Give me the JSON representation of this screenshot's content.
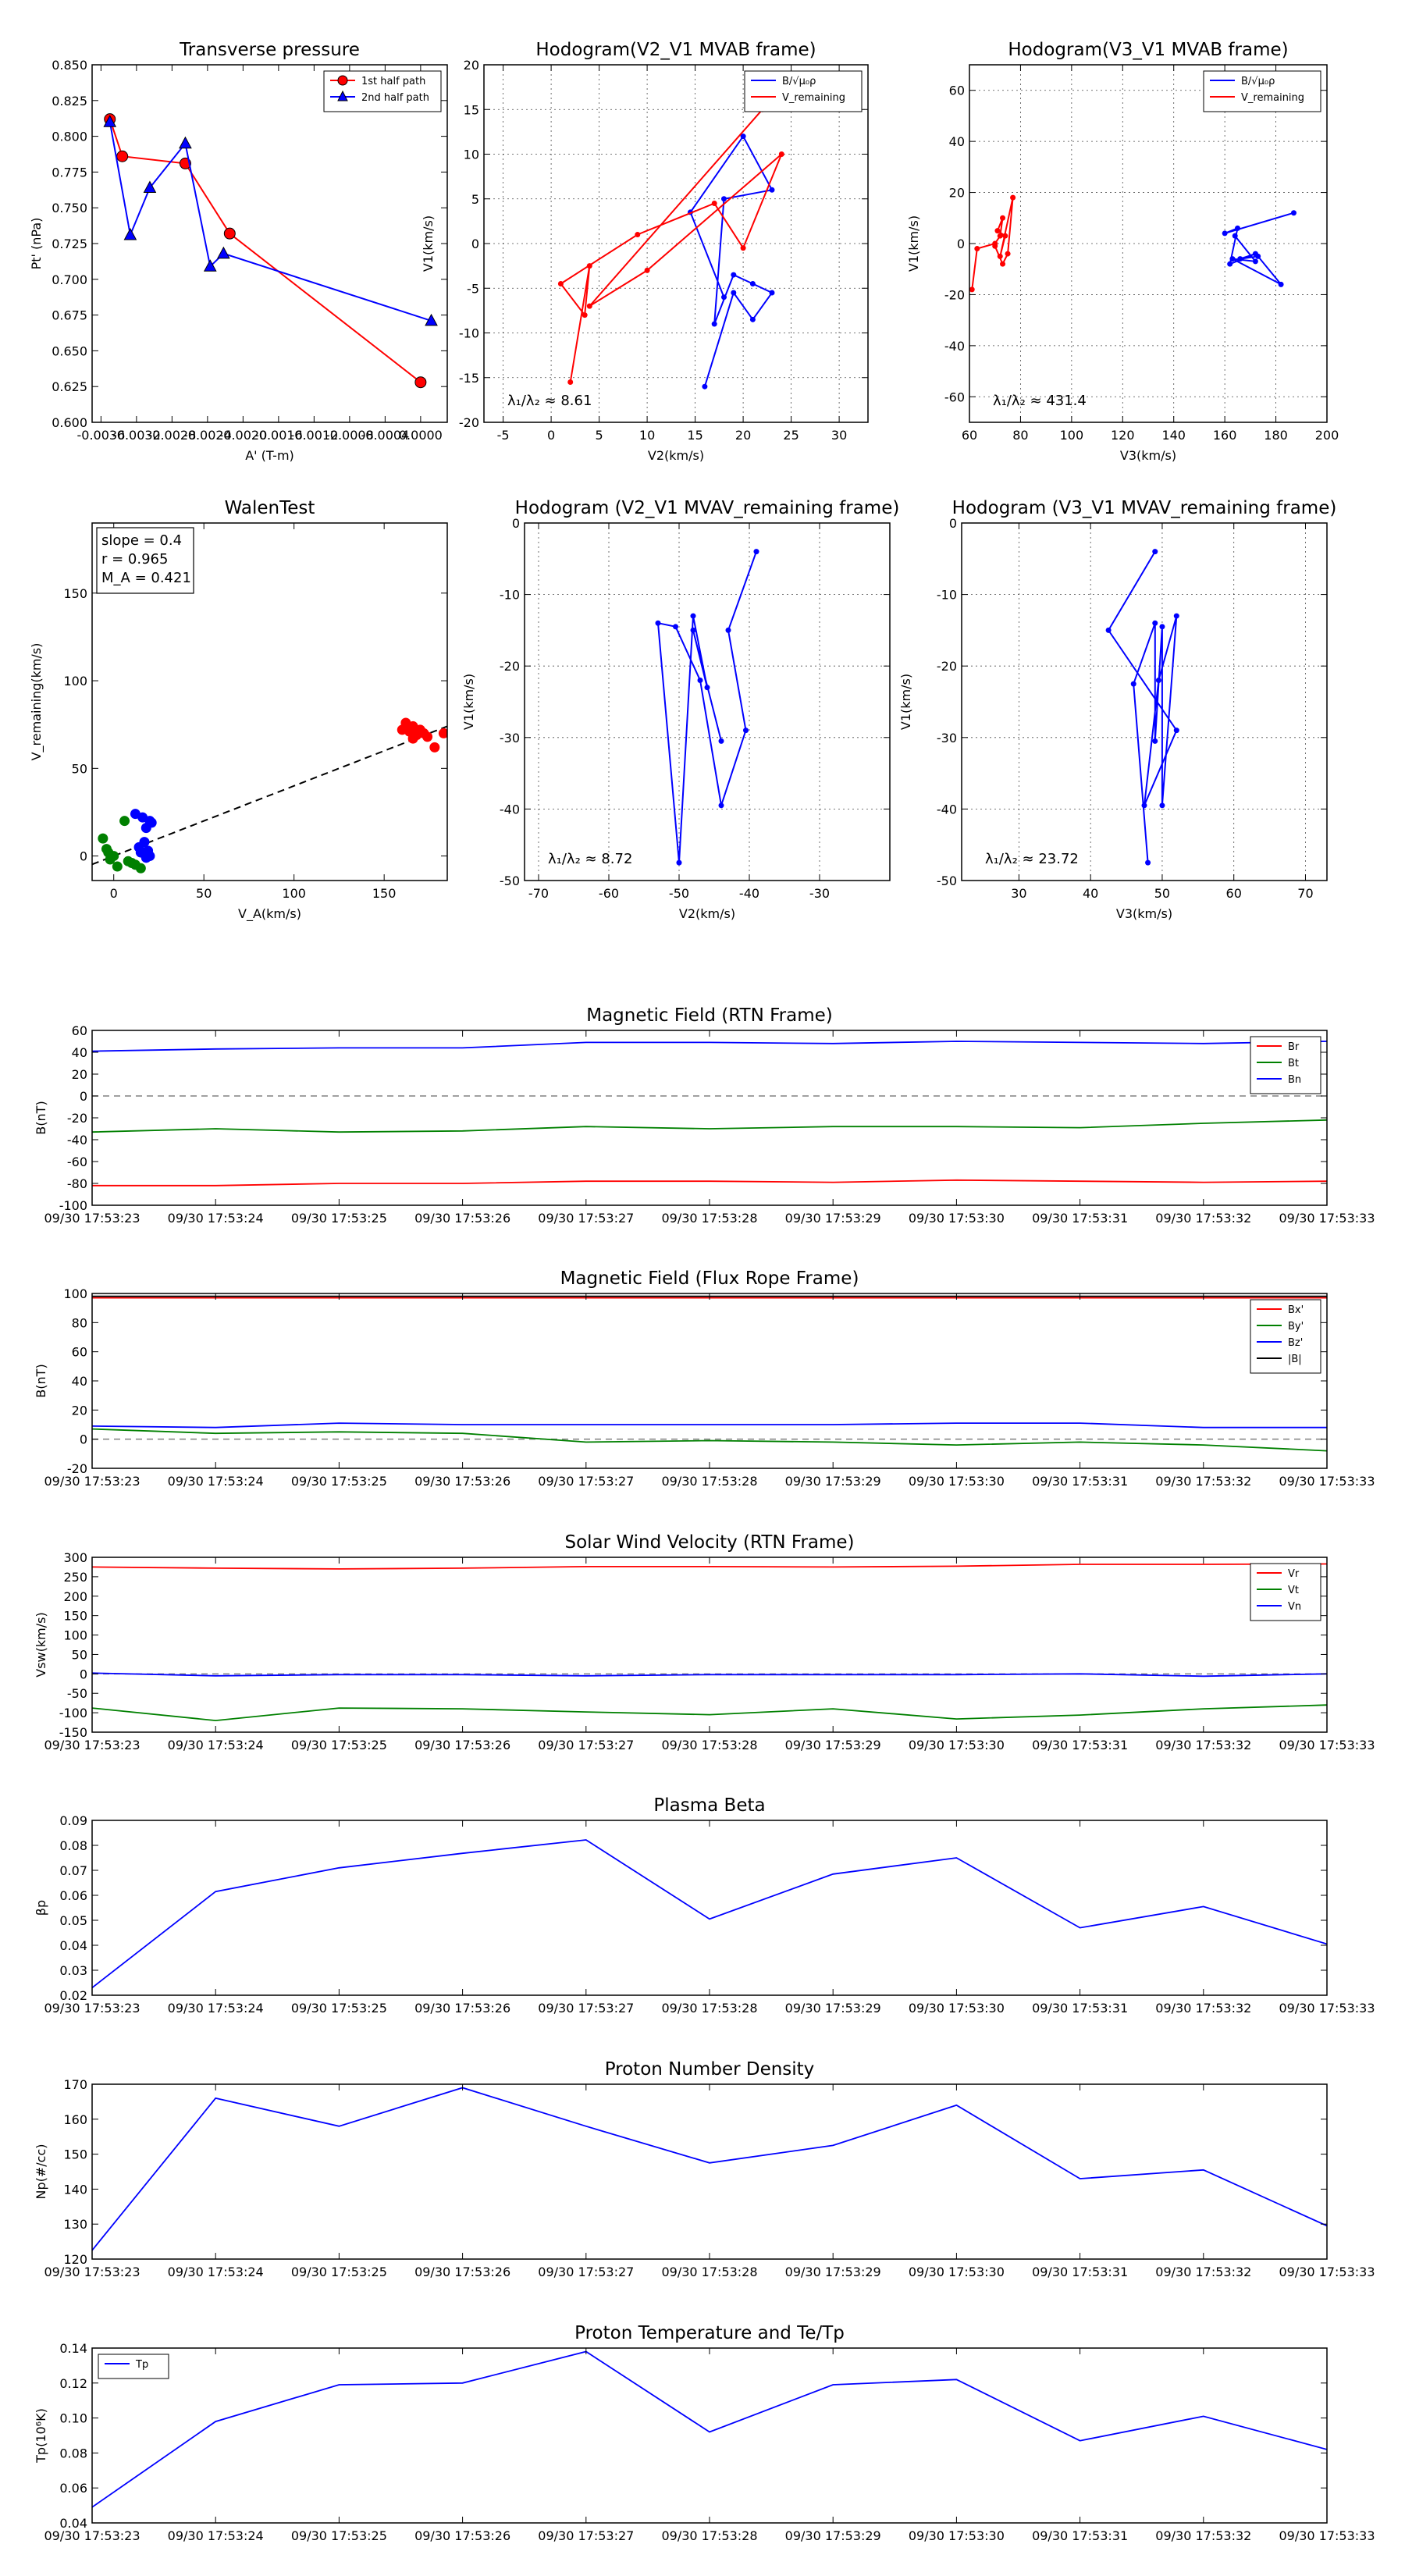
{
  "chart_data": [
    {
      "id": "tp",
      "type": "line",
      "title": "Transverse pressure",
      "xlabel": "A' (T-m)",
      "ylabel": "Pt' (nPa)",
      "xlim": [
        -0.0037,
        0.0003
      ],
      "ylim": [
        0.6,
        0.85
      ],
      "xticks": [
        -0.0036,
        -0.0032,
        -0.0028,
        -0.0024,
        -0.002,
        -0.0016,
        -0.0012,
        -0.0008,
        -0.0004,
        0.0
      ],
      "xticklabels": [
        "-0.0036",
        "-0.0032",
        "-0.0028",
        "-0.0024",
        "-0.0020",
        "-0.0016",
        "-0.0012",
        "-0.0008",
        "-0.0004",
        "0.0000"
      ],
      "yticks": [
        0.6,
        0.625,
        0.65,
        0.675,
        0.7,
        0.725,
        0.75,
        0.775,
        0.8,
        0.825,
        0.85
      ],
      "yticklabels": [
        "0.600",
        "0.625",
        "0.650",
        "0.675",
        "0.700",
        "0.725",
        "0.750",
        "0.775",
        "0.800",
        "0.825",
        "0.850"
      ],
      "grid": false,
      "legend": "top-right",
      "series": [
        {
          "name": "1st half path",
          "color": "#ff0000",
          "marker": "circle",
          "x": [
            -0.0035,
            -0.00336,
            -0.00265,
            -0.00215,
            0.0
          ],
          "y": [
            0.812,
            0.786,
            0.781,
            0.732,
            0.628
          ]
        },
        {
          "name": "2nd half path",
          "color": "#0000ff",
          "marker": "triangle",
          "x": [
            -0.0035,
            -0.00327,
            -0.00305,
            -0.00265,
            -0.00237,
            -0.00222,
            0.00012
          ],
          "y": [
            0.81,
            0.731,
            0.764,
            0.795,
            0.709,
            0.718,
            0.671
          ]
        }
      ]
    },
    {
      "id": "hodo1",
      "type": "line",
      "title": "Hodogram(V2_V1 MVAB frame)",
      "xlabel": "V2(km/s)",
      "ylabel": "V1(km/s)",
      "xlim": [
        -7,
        33
      ],
      "ylim": [
        -20,
        20
      ],
      "xticks": [
        -5,
        0,
        5,
        10,
        15,
        20,
        25,
        30
      ],
      "yticks": [
        -20,
        -15,
        -10,
        -5,
        0,
        5,
        10,
        15,
        20
      ],
      "grid": true,
      "legend": "top-right",
      "annotation": "λ₁/λ₂ ≈ 8.61",
      "series": [
        {
          "name": "B/√μ₀ρ",
          "color": "#0000ff",
          "x": [
            16,
            19,
            21,
            23,
            21,
            19,
            17,
            18,
            23,
            20,
            14.5,
            18
          ],
          "y": [
            -16,
            -5.5,
            -8.5,
            -5.5,
            -4.5,
            -3.5,
            -9,
            5,
            6,
            12,
            3.5,
            -6
          ]
        },
        {
          "name": "V_remaining",
          "color": "#ff0000",
          "x": [
            2,
            4,
            3.5,
            1,
            9,
            17,
            20,
            24,
            10,
            4,
            22
          ],
          "y": [
            -15.5,
            -2.5,
            -8,
            -4.5,
            1,
            4.5,
            -0.5,
            10,
            -3,
            -7,
            15
          ]
        }
      ]
    },
    {
      "id": "hodo2",
      "type": "line",
      "title": "Hodogram(V3_V1 MVAB frame)",
      "xlabel": "V3(km/s)",
      "ylabel": "V1(km/s)",
      "xlim": [
        60,
        200
      ],
      "ylim": [
        -70,
        70
      ],
      "xticks": [
        60,
        80,
        100,
        120,
        140,
        160,
        180,
        200
      ],
      "yticks": [
        -60,
        -40,
        -20,
        0,
        20,
        40,
        60
      ],
      "grid": true,
      "legend": "top-right",
      "annotation": "λ₁/λ₂ ≈ 431.4",
      "series": [
        {
          "name": "B/√μ₀ρ",
          "color": "#0000ff",
          "x": [
            187,
            160,
            165,
            162,
            172,
            166,
            173,
            182,
            163,
            172,
            164
          ],
          "y": [
            12,
            4,
            6,
            -8,
            -4,
            -6,
            -5,
            -16,
            -6,
            -7,
            3
          ]
        },
        {
          "name": "V_remaining",
          "color": "#ff0000",
          "x": [
            61,
            63,
            70,
            72,
            73,
            71,
            74,
            72,
            77,
            75,
            73,
            70
          ],
          "y": [
            -18,
            -2,
            0,
            3,
            10,
            5,
            3,
            -5,
            18,
            -4,
            -8,
            -1
          ]
        }
      ]
    },
    {
      "id": "walen",
      "type": "scatter",
      "title": "WalenTest",
      "xlabel": "V_A(km/s)",
      "ylabel": "V_remaining(km/s)",
      "xlim": [
        -12,
        185
      ],
      "ylim": [
        -14,
        190
      ],
      "xticks": [
        0,
        50,
        100,
        150
      ],
      "yticks": [
        0,
        50,
        100,
        150
      ],
      "grid": false,
      "legend": "top-left",
      "legend_lines": [
        "slope = 0.4",
        "r = 0.965",
        "M_A = 0.421"
      ],
      "fit_line": {
        "slope": 0.4,
        "intercept": 0
      },
      "series": [
        {
          "name": "red",
          "color": "#ff0000",
          "x": [
            160,
            162,
            164,
            166,
            168,
            170,
            172,
            174,
            162,
            166,
            178,
            183
          ],
          "y": [
            72,
            76,
            71,
            74,
            69,
            72,
            70,
            68,
            73,
            67,
            62,
            70
          ]
        },
        {
          "name": "green",
          "color": "#008000",
          "x": [
            -6,
            -4,
            -2,
            0,
            2,
            6,
            8,
            10,
            15,
            -3,
            12
          ],
          "y": [
            10,
            4,
            -2,
            0,
            -6,
            20,
            -3,
            -4,
            -7,
            2,
            -5
          ]
        },
        {
          "name": "blue",
          "color": "#0000ff",
          "x": [
            12,
            16,
            18,
            20,
            14,
            17,
            19,
            20,
            15,
            18,
            21
          ],
          "y": [
            24,
            22,
            16,
            20,
            5,
            8,
            3,
            0,
            2,
            -1,
            19
          ]
        }
      ]
    },
    {
      "id": "hodo3",
      "type": "line",
      "title": "Hodogram (V2_V1 MVAV_remaining frame)",
      "xlabel": "V2(km/s)",
      "ylabel": "V1(km/s)",
      "xlim": [
        -72,
        -20
      ],
      "ylim": [
        -50,
        0
      ],
      "xticks": [
        -70,
        -60,
        -50,
        -40,
        -30
      ],
      "yticks": [
        -50,
        -40,
        -30,
        -20,
        -10,
        0
      ],
      "grid": true,
      "legend": "none",
      "annotation": "λ₁/λ₂ ≈ 8.72",
      "series": [
        {
          "name": "B",
          "color": "#0000ff",
          "x": [
            -39,
            -43,
            -40.5,
            -44,
            -47,
            -50.5,
            -53,
            -50,
            -48,
            -46,
            -48,
            -44
          ],
          "y": [
            -4,
            -15,
            -29,
            -39.5,
            -22,
            -14.5,
            -14,
            -47.5,
            -13,
            -23,
            -15,
            -30.5
          ]
        }
      ]
    },
    {
      "id": "hodo4",
      "type": "line",
      "title": "Hodogram (V3_V1 MVAV_remaining frame)",
      "xlabel": "V3(km/s)",
      "ylabel": "V1(km/s)",
      "xlim": [
        22,
        73
      ],
      "ylim": [
        -50,
        0
      ],
      "xticks": [
        30,
        40,
        50,
        60,
        70
      ],
      "yticks": [
        -50,
        -40,
        -30,
        -20,
        -10,
        0
      ],
      "grid": true,
      "legend": "none",
      "annotation": "λ₁/λ₂ ≈ 23.72",
      "series": [
        {
          "name": "B",
          "color": "#0000ff",
          "x": [
            49,
            42.5,
            52,
            47.5,
            49.5,
            52,
            50,
            50,
            49,
            49,
            46,
            48
          ],
          "y": [
            -4,
            -15,
            -29,
            -39.5,
            -22,
            -13,
            -39.5,
            -14.5,
            -30.5,
            -14,
            -22.5,
            -47.5
          ]
        }
      ]
    },
    {
      "id": "bfield",
      "type": "line",
      "title": "Magnetic Field (RTN Frame)",
      "ylabel": "B(nT)",
      "ylim": [
        -100,
        60
      ],
      "yticks": [
        -100,
        -80,
        -60,
        -40,
        -20,
        0,
        20,
        40,
        60
      ],
      "xticklabels": [
        "09/30 17:53:23",
        "09/30 17:53:24",
        "09/30 17:53:25",
        "09/30 17:53:26",
        "09/30 17:53:27",
        "09/30 17:53:28",
        "09/30 17:53:29",
        "09/30 17:53:30",
        "09/30 17:53:31",
        "09/30 17:53:32",
        "09/30 17:53:33"
      ],
      "zero_line": true,
      "grid": false,
      "legend": "top-right",
      "series": [
        {
          "name": "Br",
          "color": "#ff0000",
          "values": [
            -82,
            -82,
            -80,
            -80,
            -78,
            -78,
            -79,
            -77,
            -78,
            -79,
            -78
          ]
        },
        {
          "name": "Bt",
          "color": "#008000",
          "values": [
            -33,
            -30,
            -33,
            -32,
            -28,
            -30,
            -28,
            -28,
            -29,
            -25,
            -22
          ]
        },
        {
          "name": "Bn",
          "color": "#0000ff",
          "values": [
            41,
            43,
            44,
            44,
            49,
            49,
            48,
            50,
            49,
            48,
            50
          ]
        }
      ]
    },
    {
      "id": "bflux",
      "type": "line",
      "title": "Magnetic Field (Flux Rope Frame)",
      "ylabel": "B(nT)",
      "ylim": [
        -20,
        100
      ],
      "yticks": [
        -20,
        0,
        20,
        40,
        60,
        80,
        100
      ],
      "xticklabels": [
        "09/30 17:53:23",
        "09/30 17:53:24",
        "09/30 17:53:25",
        "09/30 17:53:26",
        "09/30 17:53:27",
        "09/30 17:53:28",
        "09/30 17:53:29",
        "09/30 17:53:30",
        "09/30 17:53:31",
        "09/30 17:53:32",
        "09/30 17:53:33"
      ],
      "zero_line": true,
      "grid": false,
      "legend": "top-right",
      "series": [
        {
          "name": "Bx'",
          "color": "#ff0000",
          "values": [
            97,
            97,
            97,
            97,
            97,
            97,
            97,
            97,
            97,
            97,
            97
          ]
        },
        {
          "name": "By'",
          "color": "#008000",
          "values": [
            7,
            4,
            5,
            4,
            -2,
            -1,
            -2,
            -4,
            -2,
            -4,
            -8
          ]
        },
        {
          "name": "Bz'",
          "color": "#0000ff",
          "values": [
            9,
            8,
            11,
            10,
            10,
            10,
            10,
            11,
            11,
            8,
            8
          ]
        },
        {
          "name": "|B|",
          "color": "#000000",
          "values": [
            98,
            98,
            98,
            98,
            98,
            98,
            98,
            98,
            98,
            98,
            98
          ]
        }
      ]
    },
    {
      "id": "vsw",
      "type": "line",
      "title": "Solar Wind Velocity (RTN Frame)",
      "ylabel": "Vsw(km/s)",
      "ylim": [
        -150,
        300
      ],
      "yticks": [
        -150,
        -100,
        -50,
        0,
        50,
        100,
        150,
        200,
        250,
        300
      ],
      "xticklabels": [
        "09/30 17:53:23",
        "09/30 17:53:24",
        "09/30 17:53:25",
        "09/30 17:53:26",
        "09/30 17:53:27",
        "09/30 17:53:28",
        "09/30 17:53:29",
        "09/30 17:53:30",
        "09/30 17:53:31",
        "09/30 17:53:32",
        "09/30 17:53:33"
      ],
      "zero_line": true,
      "grid": false,
      "legend": "top-right",
      "series": [
        {
          "name": "Vr",
          "color": "#ff0000",
          "values": [
            275,
            272,
            270,
            272,
            276,
            276,
            275,
            277,
            282,
            282,
            283
          ]
        },
        {
          "name": "Vt",
          "color": "#008000",
          "values": [
            -88,
            -120,
            -88,
            -90,
            -98,
            -105,
            -90,
            -116,
            -106,
            -90,
            -80
          ]
        },
        {
          "name": "Vn",
          "color": "#0000ff",
          "values": [
            2,
            -5,
            -2,
            -2,
            -5,
            -2,
            -2,
            -2,
            0,
            -6,
            0
          ]
        }
      ]
    },
    {
      "id": "beta",
      "type": "line",
      "title": "Plasma Beta",
      "ylabel": "βp",
      "ylim": [
        0.02,
        0.09
      ],
      "yticks": [
        0.02,
        0.03,
        0.04,
        0.05,
        0.06,
        0.07,
        0.08,
        0.09
      ],
      "xticklabels": [
        "09/30 17:53:23",
        "09/30 17:53:24",
        "09/30 17:53:25",
        "09/30 17:53:26",
        "09/30 17:53:27",
        "09/30 17:53:28",
        "09/30 17:53:29",
        "09/30 17:53:30",
        "09/30 17:53:31",
        "09/30 17:53:32",
        "09/30 17:53:33"
      ],
      "grid": false,
      "legend": "none",
      "series": [
        {
          "name": "beta",
          "color": "#0000ff",
          "values": [
            0.023,
            0.0615,
            0.071,
            0.0768,
            0.0822,
            0.0505,
            0.0685,
            0.075,
            0.047,
            0.0555,
            0.0405
          ]
        }
      ]
    },
    {
      "id": "np",
      "type": "line",
      "title": "Proton Number Density",
      "ylabel": "Np(#/cc)",
      "ylim": [
        120,
        170
      ],
      "yticks": [
        120,
        130,
        140,
        150,
        160,
        170
      ],
      "xticklabels": [
        "09/30 17:53:23",
        "09/30 17:53:24",
        "09/30 17:53:25",
        "09/30 17:53:26",
        "09/30 17:53:27",
        "09/30 17:53:28",
        "09/30 17:53:29",
        "09/30 17:53:30",
        "09/30 17:53:31",
        "09/30 17:53:32",
        "09/30 17:53:33"
      ],
      "grid": false,
      "legend": "none",
      "series": [
        {
          "name": "Np",
          "color": "#0000ff",
          "values": [
            122.5,
            166,
            158,
            169,
            158,
            147.5,
            152.5,
            164,
            143,
            145.5,
            129.5
          ]
        }
      ]
    },
    {
      "id": "tp2",
      "type": "line",
      "title": "Proton Temperature and Te/Tp",
      "ylabel": "Tp(10⁶K)",
      "ylim": [
        0.04,
        0.14
      ],
      "yticks": [
        0.04,
        0.06,
        0.08,
        0.1,
        0.12,
        0.14
      ],
      "yticklabels": [
        "0.04",
        "0.06",
        "0.08",
        "0.10",
        "0.12",
        "0.14"
      ],
      "xticklabels": [
        "09/30 17:53:23",
        "09/30 17:53:24",
        "09/30 17:53:25",
        "09/30 17:53:26",
        "09/30 17:53:27",
        "09/30 17:53:28",
        "09/30 17:53:29",
        "09/30 17:53:30",
        "09/30 17:53:31",
        "09/30 17:53:32",
        "09/30 17:53:33"
      ],
      "grid": false,
      "legend": "top-left",
      "series": [
        {
          "name": "Tp",
          "color": "#0000ff",
          "values": [
            0.049,
            0.098,
            0.119,
            0.12,
            0.138,
            0.092,
            0.119,
            0.122,
            0.087,
            0.101,
            0.082
          ]
        }
      ]
    }
  ]
}
